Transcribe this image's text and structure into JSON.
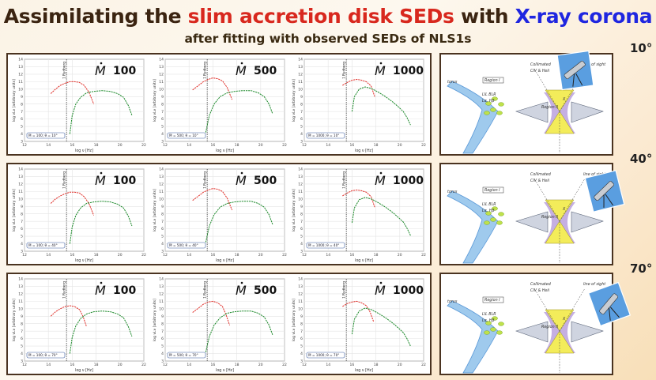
{
  "title": {
    "part1": "Assimilating the ",
    "part2": "slim accretion disk SEDs",
    "part3": " with ",
    "part4": "X-ray corona",
    "colors": {
      "dark": "#3b2411",
      "red": "#d8281e",
      "blue": "#1f26e0"
    }
  },
  "subtitle": "after fitting with observed SEDs of NLS1s",
  "angles": [
    "10°",
    "40°",
    "70°"
  ],
  "colors": {
    "red_curve": "#e0302a",
    "green_curve": "#1e8a2c"
  },
  "chart_data": [
    {
      "type": "line",
      "row": 0,
      "mdot_label": "100",
      "legend": "Ṁ = 100; θ = 10°",
      "xlabel": "log ν [Hz]",
      "ylabel": "log νLν [arbitrary units]",
      "rydberg_label": "1 Rydberg",
      "rydberg_x": 15.52,
      "xlim": [
        12,
        22
      ],
      "ylim": [
        3,
        14
      ],
      "xticks": [
        12,
        14,
        16,
        18,
        20,
        22
      ],
      "yticks": [
        3,
        4,
        5,
        6,
        7,
        8,
        9,
        10,
        11,
        12,
        13,
        14
      ],
      "series": [
        {
          "name": "slim disk",
          "color": "red",
          "x": [
            14.2,
            14.6,
            15.0,
            15.4,
            15.8,
            16.2,
            16.6,
            17.0,
            17.4,
            17.8
          ],
          "y": [
            9.4,
            10.0,
            10.5,
            10.8,
            11.0,
            11.0,
            10.9,
            10.5,
            9.6,
            8.0
          ]
        },
        {
          "name": "corona",
          "color": "green",
          "x": [
            15.8,
            16.0,
            16.3,
            16.7,
            17.2,
            17.8,
            18.5,
            19.2,
            19.8,
            20.3,
            20.7,
            21.0
          ],
          "y": [
            4.0,
            6.5,
            8.0,
            8.9,
            9.5,
            9.7,
            9.8,
            9.7,
            9.4,
            8.9,
            7.8,
            6.5
          ]
        }
      ]
    },
    {
      "type": "line",
      "row": 0,
      "mdot_label": "500",
      "legend": "Ṁ = 500; θ = 10°",
      "xlabel": "log ν [Hz]",
      "ylabel": "log νLν [arbitrary units]",
      "rydberg_label": "1 Rydberg",
      "rydberg_x": 15.52,
      "xlim": [
        12,
        22
      ],
      "ylim": [
        3,
        14
      ],
      "xticks": [
        12,
        14,
        16,
        18,
        20,
        22
      ],
      "yticks": [
        3,
        4,
        5,
        6,
        7,
        8,
        9,
        10,
        11,
        12,
        13,
        14
      ],
      "series": [
        {
          "name": "slim disk",
          "color": "red",
          "x": [
            14.3,
            14.8,
            15.2,
            15.6,
            16.0,
            16.4,
            16.8,
            17.2,
            17.6
          ],
          "y": [
            9.9,
            10.5,
            11.0,
            11.3,
            11.5,
            11.4,
            11.1,
            10.2,
            8.6
          ]
        },
        {
          "name": "corona",
          "color": "green",
          "x": [
            15.4,
            15.7,
            16.1,
            16.6,
            17.2,
            17.8,
            18.5,
            19.2,
            19.8,
            20.3,
            20.7,
            21.0
          ],
          "y": [
            4.2,
            6.5,
            8.0,
            9.0,
            9.5,
            9.7,
            9.8,
            9.8,
            9.5,
            9.0,
            8.0,
            6.7
          ]
        }
      ]
    },
    {
      "type": "line",
      "row": 0,
      "mdot_label": "1000",
      "legend": "Ṁ = 1000; θ = 10°",
      "xlabel": "log ν [Hz]",
      "ylabel": "log νLν [arbitrary units]",
      "rydberg_label": "1 Rydberg",
      "rydberg_x": 15.52,
      "xlim": [
        12,
        22
      ],
      "ylim": [
        3,
        14
      ],
      "xticks": [
        12,
        14,
        16,
        18,
        20,
        22
      ],
      "yticks": [
        3,
        4,
        5,
        6,
        7,
        8,
        9,
        10,
        11,
        12,
        13,
        14
      ],
      "series": [
        {
          "name": "slim disk",
          "color": "red",
          "x": [
            15.2,
            15.6,
            16.0,
            16.4,
            16.8,
            17.2,
            17.6,
            17.9
          ],
          "y": [
            10.5,
            10.9,
            11.2,
            11.3,
            11.2,
            11.0,
            10.4,
            9.0
          ]
        },
        {
          "name": "corona",
          "color": "green",
          "x": [
            16.0,
            16.2,
            16.6,
            17.1,
            17.6,
            18.2,
            18.8,
            19.4,
            19.9,
            20.3,
            20.6,
            20.9
          ],
          "y": [
            7.0,
            9.0,
            10.0,
            10.3,
            10.1,
            9.6,
            9.0,
            8.3,
            7.6,
            7.0,
            6.2,
            5.2
          ]
        }
      ]
    },
    {
      "type": "line",
      "row": 1,
      "mdot_label": "100",
      "legend": "Ṁ = 100; θ = 40°",
      "xlabel": "log ν [Hz]",
      "ylabel": "log νLν [arbitrary units]",
      "rydberg_label": "1 Rydberg",
      "rydberg_x": 15.52,
      "xlim": [
        12,
        22
      ],
      "ylim": [
        3,
        14
      ],
      "xticks": [
        12,
        14,
        16,
        18,
        20,
        22
      ],
      "yticks": [
        3,
        4,
        5,
        6,
        7,
        8,
        9,
        10,
        11,
        12,
        13,
        14
      ],
      "series": [
        {
          "name": "slim disk",
          "color": "red",
          "x": [
            14.2,
            14.6,
            15.0,
            15.4,
            15.8,
            16.2,
            16.6,
            17.0,
            17.4,
            17.8
          ],
          "y": [
            9.4,
            10.0,
            10.4,
            10.7,
            10.9,
            10.9,
            10.8,
            10.3,
            9.4,
            7.8
          ]
        },
        {
          "name": "corona",
          "color": "green",
          "x": [
            15.8,
            16.0,
            16.3,
            16.7,
            17.2,
            17.8,
            18.5,
            19.2,
            19.8,
            20.3,
            20.7,
            21.0
          ],
          "y": [
            4.0,
            6.3,
            7.8,
            8.8,
            9.4,
            9.6,
            9.7,
            9.6,
            9.3,
            8.8,
            7.7,
            6.4
          ]
        }
      ]
    },
    {
      "type": "line",
      "row": 1,
      "mdot_label": "500",
      "legend": "Ṁ = 500; θ = 40°",
      "xlabel": "log ν [Hz]",
      "ylabel": "log νLν [arbitrary units]",
      "rydberg_label": "1 Rydberg",
      "rydberg_x": 15.52,
      "xlim": [
        12,
        22
      ],
      "ylim": [
        3,
        14
      ],
      "xticks": [
        12,
        14,
        16,
        18,
        20,
        22
      ],
      "yticks": [
        3,
        4,
        5,
        6,
        7,
        8,
        9,
        10,
        11,
        12,
        13,
        14
      ],
      "series": [
        {
          "name": "slim disk",
          "color": "red",
          "x": [
            14.3,
            14.8,
            15.2,
            15.6,
            16.0,
            16.4,
            16.8,
            17.2,
            17.6
          ],
          "y": [
            9.8,
            10.4,
            10.9,
            11.2,
            11.4,
            11.3,
            11.0,
            10.1,
            8.5
          ]
        },
        {
          "name": "corona",
          "color": "green",
          "x": [
            15.4,
            15.7,
            16.1,
            16.6,
            17.2,
            17.8,
            18.5,
            19.2,
            19.8,
            20.3,
            20.7,
            21.0
          ],
          "y": [
            4.2,
            6.4,
            7.9,
            8.9,
            9.4,
            9.6,
            9.7,
            9.7,
            9.4,
            8.9,
            7.9,
            6.6
          ]
        }
      ]
    },
    {
      "type": "line",
      "row": 1,
      "mdot_label": "1000",
      "legend": "Ṁ = 1000; θ = 40°",
      "xlabel": "log ν [Hz]",
      "ylabel": "log νLν [arbitrary units]",
      "rydberg_label": "1 Rydberg",
      "rydberg_x": 15.52,
      "xlim": [
        12,
        22
      ],
      "ylim": [
        3,
        14
      ],
      "xticks": [
        12,
        14,
        16,
        18,
        20,
        22
      ],
      "yticks": [
        3,
        4,
        5,
        6,
        7,
        8,
        9,
        10,
        11,
        12,
        13,
        14
      ],
      "series": [
        {
          "name": "slim disk",
          "color": "red",
          "x": [
            15.2,
            15.6,
            16.0,
            16.4,
            16.8,
            17.2,
            17.6,
            17.9
          ],
          "y": [
            10.4,
            10.8,
            11.1,
            11.2,
            11.1,
            10.9,
            10.3,
            8.9
          ]
        },
        {
          "name": "corona",
          "color": "green",
          "x": [
            16.0,
            16.2,
            16.6,
            17.1,
            17.6,
            18.2,
            18.8,
            19.4,
            19.9,
            20.3,
            20.6,
            20.9
          ],
          "y": [
            6.8,
            8.8,
            9.9,
            10.2,
            10.0,
            9.5,
            8.9,
            8.2,
            7.5,
            6.9,
            6.1,
            5.1
          ]
        }
      ]
    },
    {
      "type": "line",
      "row": 2,
      "mdot_label": "100",
      "legend": "Ṁ = 100; θ = 70°",
      "xlabel": "log ν [Hz]",
      "ylabel": "log νLν [arbitrary units]",
      "rydberg_label": "1 Rydberg",
      "rydberg_x": 15.52,
      "xlim": [
        12,
        22
      ],
      "ylim": [
        3,
        14
      ],
      "xticks": [
        12,
        14,
        16,
        18,
        20,
        22
      ],
      "yticks": [
        3,
        4,
        5,
        6,
        7,
        8,
        9,
        10,
        11,
        12,
        13,
        14
      ],
      "series": [
        {
          "name": "slim disk",
          "color": "red",
          "x": [
            14.2,
            14.6,
            15.0,
            15.4,
            15.8,
            16.2,
            16.6,
            16.9,
            17.2
          ],
          "y": [
            9.0,
            9.6,
            10.0,
            10.3,
            10.4,
            10.3,
            9.9,
            9.0,
            7.6
          ]
        },
        {
          "name": "corona",
          "color": "green",
          "x": [
            15.8,
            16.0,
            16.3,
            16.7,
            17.2,
            17.8,
            18.5,
            19.2,
            19.8,
            20.3,
            20.7,
            21.0
          ],
          "y": [
            4.0,
            6.2,
            7.7,
            8.7,
            9.3,
            9.6,
            9.7,
            9.6,
            9.3,
            8.8,
            7.6,
            6.3
          ]
        }
      ]
    },
    {
      "type": "line",
      "row": 2,
      "mdot_label": "500",
      "legend": "Ṁ = 500; θ = 70°",
      "xlabel": "log ν [Hz]",
      "ylabel": "log νLν [arbitrary units]",
      "rydberg_label": "1 Rydberg",
      "rydberg_x": 15.52,
      "xlim": [
        12,
        22
      ],
      "ylim": [
        3,
        14
      ],
      "xticks": [
        12,
        14,
        16,
        18,
        20,
        22
      ],
      "yticks": [
        3,
        4,
        5,
        6,
        7,
        8,
        9,
        10,
        11,
        12,
        13,
        14
      ],
      "series": [
        {
          "name": "slim disk",
          "color": "red",
          "x": [
            14.3,
            14.8,
            15.2,
            15.6,
            16.0,
            16.4,
            16.8,
            17.1,
            17.4
          ],
          "y": [
            9.5,
            10.1,
            10.6,
            10.9,
            11.0,
            10.8,
            10.3,
            9.2,
            7.8
          ]
        },
        {
          "name": "corona",
          "color": "green",
          "x": [
            15.4,
            15.7,
            16.1,
            16.6,
            17.2,
            17.8,
            18.5,
            19.2,
            19.8,
            20.3,
            20.7,
            21.0
          ],
          "y": [
            4.2,
            6.3,
            7.8,
            8.8,
            9.4,
            9.6,
            9.7,
            9.7,
            9.4,
            8.9,
            7.8,
            6.5
          ]
        }
      ]
    },
    {
      "type": "line",
      "row": 2,
      "mdot_label": "1000",
      "legend": "Ṁ = 1000; θ = 70°",
      "xlabel": "log ν [Hz]",
      "ylabel": "log νLν [arbitrary units]",
      "rydberg_label": "1 Rydberg",
      "rydberg_x": 15.52,
      "xlim": [
        12,
        22
      ],
      "ylim": [
        3,
        14
      ],
      "xticks": [
        12,
        14,
        16,
        18,
        20,
        22
      ],
      "yticks": [
        3,
        4,
        5,
        6,
        7,
        8,
        9,
        10,
        11,
        12,
        13,
        14
      ],
      "series": [
        {
          "name": "slim disk",
          "color": "red",
          "x": [
            15.2,
            15.6,
            16.0,
            16.4,
            16.8,
            17.2,
            17.5,
            17.8
          ],
          "y": [
            10.3,
            10.7,
            10.9,
            11.0,
            10.8,
            10.4,
            9.6,
            8.3
          ]
        },
        {
          "name": "corona",
          "color": "green",
          "x": [
            16.0,
            16.2,
            16.6,
            17.1,
            17.6,
            18.2,
            18.8,
            19.4,
            19.9,
            20.3,
            20.6,
            20.9
          ],
          "y": [
            6.6,
            8.6,
            9.7,
            10.1,
            9.9,
            9.4,
            8.8,
            8.1,
            7.4,
            6.8,
            6.0,
            5.0
          ]
        }
      ]
    }
  ],
  "sketch": {
    "labels": [
      "torus",
      "Region I",
      "LIL BLR",
      "Lα, Hβ",
      "Collimated",
      "CIV & Heii",
      "Region II",
      "line of sight",
      "X"
    ]
  }
}
